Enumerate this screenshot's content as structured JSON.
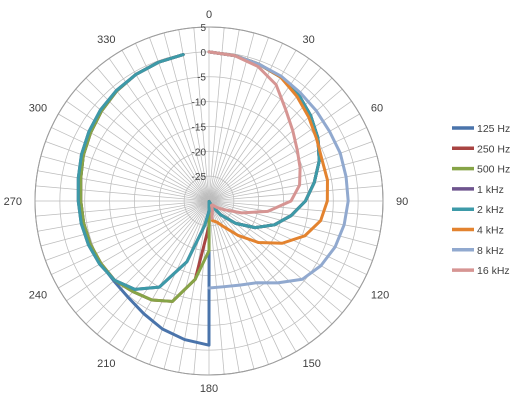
{
  "chart_data": {
    "type": "radar",
    "angular_axis": {
      "labels": [
        "0",
        "30",
        "60",
        "90",
        "120",
        "150",
        "180",
        "210",
        "240",
        "270",
        "300",
        "330"
      ],
      "step_deg": 30,
      "spoke_step_deg": 5,
      "direction": "clockwise",
      "zero_at": "top"
    },
    "radial_axis": {
      "min": -30,
      "max": 5,
      "ticks": [
        5,
        0,
        -5,
        -10,
        -15,
        -20,
        -25
      ],
      "tick_labels": [
        "5",
        "0",
        "-5",
        "-10",
        "-15",
        "-20",
        "-25"
      ]
    },
    "grid": true,
    "legend_position": "right",
    "series": [
      {
        "name": "125 Hz",
        "color": "#4a74ab",
        "points": [
          [
            0,
            0
          ],
          [
            10,
            -0.3
          ],
          [
            20,
            -0.7
          ],
          [
            30,
            -1.2
          ],
          [
            40,
            -2
          ],
          [
            50,
            -3.3
          ],
          [
            60,
            -4.7
          ],
          [
            70,
            -6.4
          ],
          [
            80,
            -8.5
          ],
          [
            90,
            -10.6
          ],
          [
            100,
            -13.2
          ],
          [
            110,
            -16
          ],
          [
            120,
            -19.3
          ],
          [
            130,
            -23
          ],
          [
            140,
            -26.4
          ],
          [
            150,
            -29
          ],
          [
            160,
            -29.7
          ],
          [
            170,
            -29.9
          ],
          [
            180,
            -1
          ],
          [
            190,
            -1.7
          ],
          [
            200,
            -2.6
          ],
          [
            210,
            -3.8
          ],
          [
            220,
            -4.7
          ],
          [
            230,
            -5
          ],
          [
            240,
            -4.8
          ],
          [
            250,
            -4.6
          ],
          [
            260,
            -4.4
          ],
          [
            270,
            -4.2
          ],
          [
            280,
            -3.8
          ],
          [
            290,
            -3.1
          ],
          [
            300,
            -2.5
          ],
          [
            310,
            -1.8
          ],
          [
            320,
            -1.1
          ],
          [
            330,
            -0.6
          ],
          [
            340,
            -0.3
          ],
          [
            350,
            -0.1
          ]
        ]
      },
      {
        "name": "250 Hz",
        "color": "#a84442",
        "points": [
          [
            0,
            0
          ],
          [
            10,
            -0.3
          ],
          [
            20,
            -0.7
          ],
          [
            30,
            -1.2
          ],
          [
            40,
            -2
          ],
          [
            50,
            -3.3
          ],
          [
            60,
            -4.7
          ],
          [
            70,
            -6.4
          ],
          [
            80,
            -8.5
          ],
          [
            90,
            -10.6
          ],
          [
            100,
            -13.2
          ],
          [
            110,
            -16
          ],
          [
            120,
            -19.3
          ],
          [
            130,
            -23
          ],
          [
            140,
            -26.4
          ],
          [
            150,
            -29
          ],
          [
            160,
            -29.7
          ],
          [
            170,
            -29.9
          ],
          [
            180,
            -25
          ],
          [
            190,
            -14
          ],
          [
            200,
            -8.5
          ],
          [
            210,
            -7
          ],
          [
            220,
            -6.2
          ],
          [
            230,
            -5.2
          ],
          [
            240,
            -4.9
          ],
          [
            250,
            -4.6
          ],
          [
            260,
            -4.4
          ],
          [
            270,
            -4.2
          ],
          [
            280,
            -3.8
          ],
          [
            290,
            -3.1
          ],
          [
            300,
            -2.5
          ],
          [
            310,
            -1.8
          ],
          [
            320,
            -1.1
          ],
          [
            330,
            -0.6
          ],
          [
            340,
            -0.3
          ],
          [
            350,
            -0.1
          ]
        ]
      },
      {
        "name": "500 Hz",
        "color": "#86a447",
        "points": [
          [
            0,
            0
          ],
          [
            10,
            -0.3
          ],
          [
            20,
            -0.7
          ],
          [
            30,
            -1.2
          ],
          [
            40,
            -2
          ],
          [
            50,
            -3.3
          ],
          [
            60,
            -4.7
          ],
          [
            70,
            -6.4
          ],
          [
            80,
            -8.5
          ],
          [
            90,
            -10.6
          ],
          [
            100,
            -13.2
          ],
          [
            110,
            -16
          ],
          [
            120,
            -19.3
          ],
          [
            130,
            -23
          ],
          [
            140,
            -26.4
          ],
          [
            150,
            -29
          ],
          [
            160,
            -29.7
          ],
          [
            170,
            -29.9
          ],
          [
            180,
            -20
          ],
          [
            190,
            -14
          ],
          [
            200,
            -8.5
          ],
          [
            210,
            -7
          ],
          [
            220,
            -6.2
          ],
          [
            230,
            -5.2
          ],
          [
            240,
            -4.9
          ],
          [
            250,
            -4.6
          ],
          [
            260,
            -4.4
          ],
          [
            270,
            -4.2
          ],
          [
            280,
            -3.8
          ],
          [
            290,
            -3.1
          ],
          [
            300,
            -2.5
          ],
          [
            310,
            -1.8
          ],
          [
            320,
            -1.1
          ],
          [
            330,
            -0.6
          ],
          [
            340,
            -0.3
          ],
          [
            350,
            -0.1
          ]
        ]
      },
      {
        "name": "1 kHz",
        "color": "#6e548e",
        "points": [
          [
            0,
            0
          ],
          [
            10,
            -0.3
          ],
          [
            20,
            -0.7
          ],
          [
            30,
            -1.2
          ],
          [
            40,
            -2
          ],
          [
            50,
            -3.3
          ],
          [
            60,
            -4.7
          ],
          [
            70,
            -6.4
          ],
          [
            80,
            -8.5
          ],
          [
            90,
            -10.6
          ],
          [
            100,
            -13.2
          ],
          [
            110,
            -16
          ],
          [
            120,
            -19.3
          ],
          [
            130,
            -23
          ],
          [
            140,
            -26.4
          ],
          [
            150,
            -29
          ],
          [
            160,
            -29.7
          ],
          [
            170,
            -29.9
          ],
          [
            180,
            -28
          ],
          [
            190,
            -25
          ],
          [
            200,
            -17
          ],
          [
            210,
            -10
          ],
          [
            220,
            -6.8
          ],
          [
            230,
            -5.2
          ],
          [
            240,
            -4.6
          ],
          [
            250,
            -4.2
          ],
          [
            260,
            -3.9
          ],
          [
            270,
            -3.7
          ],
          [
            280,
            -3.3
          ],
          [
            290,
            -2.7
          ],
          [
            300,
            -2.1
          ],
          [
            310,
            -1.5
          ],
          [
            320,
            -1
          ],
          [
            330,
            -0.6
          ],
          [
            340,
            -0.3
          ],
          [
            350,
            -0.1
          ]
        ]
      },
      {
        "name": "2 kHz",
        "color": "#3d9aa8",
        "points": [
          [
            0,
            0
          ],
          [
            10,
            -0.3
          ],
          [
            20,
            -0.7
          ],
          [
            30,
            -1.2
          ],
          [
            40,
            -2
          ],
          [
            50,
            -3.3
          ],
          [
            60,
            -4.7
          ],
          [
            70,
            -6.4
          ],
          [
            80,
            -8.5
          ],
          [
            90,
            -10.6
          ],
          [
            100,
            -13.2
          ],
          [
            110,
            -16
          ],
          [
            120,
            -19.3
          ],
          [
            130,
            -23
          ],
          [
            140,
            -26.4
          ],
          [
            150,
            -29
          ],
          [
            160,
            -29.7
          ],
          [
            170,
            -29.9
          ],
          [
            180,
            -28
          ],
          [
            190,
            -25
          ],
          [
            200,
            -17
          ],
          [
            210,
            -10
          ],
          [
            220,
            -6.8
          ],
          [
            230,
            -5.2
          ],
          [
            240,
            -4.6
          ],
          [
            250,
            -4.2
          ],
          [
            260,
            -3.9
          ],
          [
            270,
            -3.7
          ],
          [
            280,
            -3.3
          ],
          [
            290,
            -2.7
          ],
          [
            300,
            -2.1
          ],
          [
            310,
            -1.5
          ],
          [
            320,
            -1
          ],
          [
            330,
            -0.6
          ],
          [
            340,
            -0.3
          ],
          [
            350,
            -0.1
          ]
        ]
      },
      {
        "name": "4 kHz",
        "color": "#e3832f",
        "points": [
          [
            0,
            0
          ],
          [
            10,
            -0.3
          ],
          [
            20,
            -0.7
          ],
          [
            30,
            -1.2
          ],
          [
            40,
            -2.5
          ],
          [
            50,
            -3.8
          ],
          [
            60,
            -5
          ],
          [
            70,
            -5.8
          ],
          [
            80,
            -5.8
          ],
          [
            90,
            -6.2
          ],
          [
            100,
            -7.2
          ],
          [
            110,
            -9.5
          ],
          [
            120,
            -13
          ],
          [
            130,
            -17
          ],
          [
            140,
            -21
          ],
          [
            150,
            -24
          ],
          [
            160,
            -25.5
          ],
          [
            170,
            -26
          ],
          [
            180,
            -30
          ],
          [
            190,
            -30
          ],
          [
            200,
            -30
          ],
          [
            210,
            -30
          ],
          [
            220,
            -30
          ],
          [
            230,
            -30
          ],
          [
            240,
            -30
          ],
          [
            250,
            -30
          ],
          [
            260,
            -30
          ],
          [
            270,
            -30
          ],
          [
            280,
            -30
          ],
          [
            290,
            -30
          ],
          [
            300,
            -30
          ],
          [
            310,
            -30
          ],
          [
            320,
            -30
          ],
          [
            330,
            -30
          ],
          [
            340,
            -30
          ],
          [
            350,
            -30
          ]
        ]
      },
      {
        "name": "8 kHz",
        "color": "#91a9cf",
        "points": [
          [
            0,
            0
          ],
          [
            10,
            -0.3
          ],
          [
            20,
            -0.7
          ],
          [
            30,
            -1
          ],
          [
            40,
            -1.5
          ],
          [
            50,
            -1.8
          ],
          [
            60,
            -2
          ],
          [
            70,
            -1.9
          ],
          [
            80,
            -2
          ],
          [
            90,
            -2
          ],
          [
            100,
            -2.4
          ],
          [
            110,
            -3
          ],
          [
            120,
            -4
          ],
          [
            130,
            -5.5
          ],
          [
            140,
            -8.5
          ],
          [
            150,
            -11
          ],
          [
            160,
            -12
          ],
          [
            170,
            -12.5
          ],
          [
            180,
            -12.5
          ],
          [
            190,
            -30
          ],
          [
            200,
            -30
          ],
          [
            210,
            -30
          ],
          [
            220,
            -30
          ],
          [
            230,
            -30
          ],
          [
            240,
            -30
          ],
          [
            250,
            -30
          ],
          [
            260,
            -30
          ],
          [
            270,
            -30
          ],
          [
            280,
            -30
          ],
          [
            290,
            -30
          ],
          [
            300,
            -30
          ],
          [
            310,
            -30
          ],
          [
            320,
            -30
          ],
          [
            330,
            -30
          ],
          [
            340,
            -30
          ],
          [
            350,
            -30
          ]
        ]
      },
      {
        "name": "16 kHz",
        "color": "#d69593",
        "points": [
          [
            0,
            0
          ],
          [
            10,
            -0.3
          ],
          [
            20,
            -1.2
          ],
          [
            30,
            -3
          ],
          [
            40,
            -6
          ],
          [
            50,
            -8
          ],
          [
            60,
            -9.5
          ],
          [
            70,
            -10.5
          ],
          [
            80,
            -11.5
          ],
          [
            90,
            -13.5
          ],
          [
            100,
            -18
          ],
          [
            110,
            -23
          ],
          [
            120,
            -26.5
          ],
          [
            130,
            -28
          ],
          [
            140,
            -29
          ],
          [
            150,
            -29
          ],
          [
            160,
            -28
          ],
          [
            170,
            -26.5
          ],
          [
            180,
            -30
          ],
          [
            190,
            -30
          ],
          [
            200,
            -30
          ],
          [
            210,
            -30
          ],
          [
            220,
            -30
          ],
          [
            230,
            -30
          ],
          [
            240,
            -30
          ],
          [
            250,
            -30
          ],
          [
            260,
            -30
          ],
          [
            270,
            -30
          ],
          [
            280,
            -30
          ],
          [
            290,
            -30
          ],
          [
            300,
            -30
          ],
          [
            310,
            -30
          ],
          [
            320,
            -30
          ],
          [
            330,
            -30
          ],
          [
            340,
            -30
          ],
          [
            350,
            -30
          ]
        ]
      }
    ]
  }
}
